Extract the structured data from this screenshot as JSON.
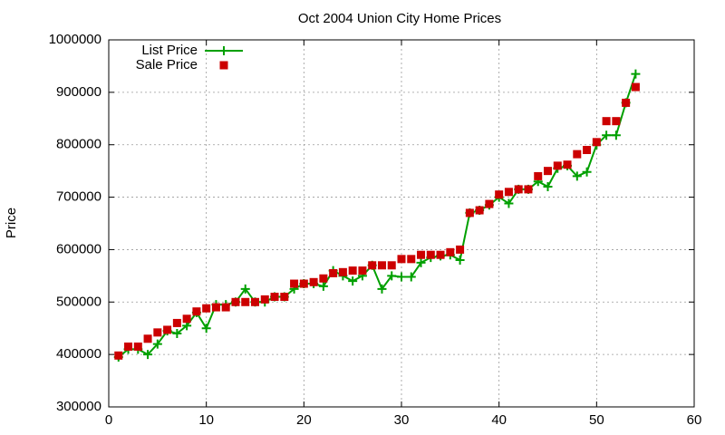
{
  "chart_data": {
    "type": "line",
    "title": "Oct 2004 Union City Home Prices",
    "y_label": "Price",
    "x": [
      1,
      2,
      3,
      4,
      5,
      6,
      7,
      8,
      9,
      10,
      11,
      12,
      13,
      14,
      15,
      16,
      17,
      18,
      19,
      20,
      21,
      22,
      23,
      24,
      25,
      26,
      27,
      28,
      29,
      30,
      31,
      32,
      33,
      34,
      35,
      36,
      37,
      38,
      39,
      40,
      41,
      42,
      43,
      44,
      45,
      46,
      47,
      48,
      49,
      50,
      51,
      52,
      53,
      54
    ],
    "series": [
      {
        "name": "List Price",
        "color": "#00a000",
        "marker": "plus",
        "line": true,
        "values": [
          395000,
          410000,
          410000,
          400000,
          420000,
          445000,
          440000,
          455000,
          480000,
          450000,
          495000,
          495000,
          500000,
          525000,
          500000,
          500000,
          510000,
          510000,
          525000,
          535000,
          535000,
          530000,
          560000,
          550000,
          540000,
          550000,
          570000,
          525000,
          550000,
          548000,
          548000,
          575000,
          585000,
          588000,
          590000,
          580000,
          670000,
          675000,
          685000,
          700000,
          688000,
          715000,
          715000,
          730000,
          720000,
          755000,
          760000,
          740000,
          748000,
          800000,
          818000,
          818000,
          880000,
          935000
        ]
      },
      {
        "name": "Sale Price",
        "color": "#cc0000",
        "marker": "square",
        "line": false,
        "values": [
          398000,
          415000,
          415000,
          430000,
          442000,
          447000,
          460000,
          468000,
          482000,
          488000,
          490000,
          490000,
          500000,
          500000,
          500000,
          505000,
          510000,
          510000,
          535000,
          535000,
          538000,
          545000,
          555000,
          557000,
          560000,
          560000,
          570000,
          570000,
          570000,
          582000,
          582000,
          590000,
          590000,
          590000,
          595000,
          600000,
          670000,
          675000,
          687000,
          705000,
          710000,
          715000,
          715000,
          740000,
          750000,
          760000,
          762000,
          782000,
          790000,
          805000,
          845000,
          845000,
          880000,
          910000
        ]
      }
    ],
    "xlim": [
      0,
      60
    ],
    "xticks": [
      0,
      10,
      20,
      30,
      40,
      50,
      60
    ],
    "ylim": [
      300000,
      1000000
    ],
    "yticks": [
      300000,
      400000,
      500000,
      600000,
      700000,
      800000,
      900000,
      1000000
    ],
    "grid": true,
    "legend": "top-left"
  }
}
